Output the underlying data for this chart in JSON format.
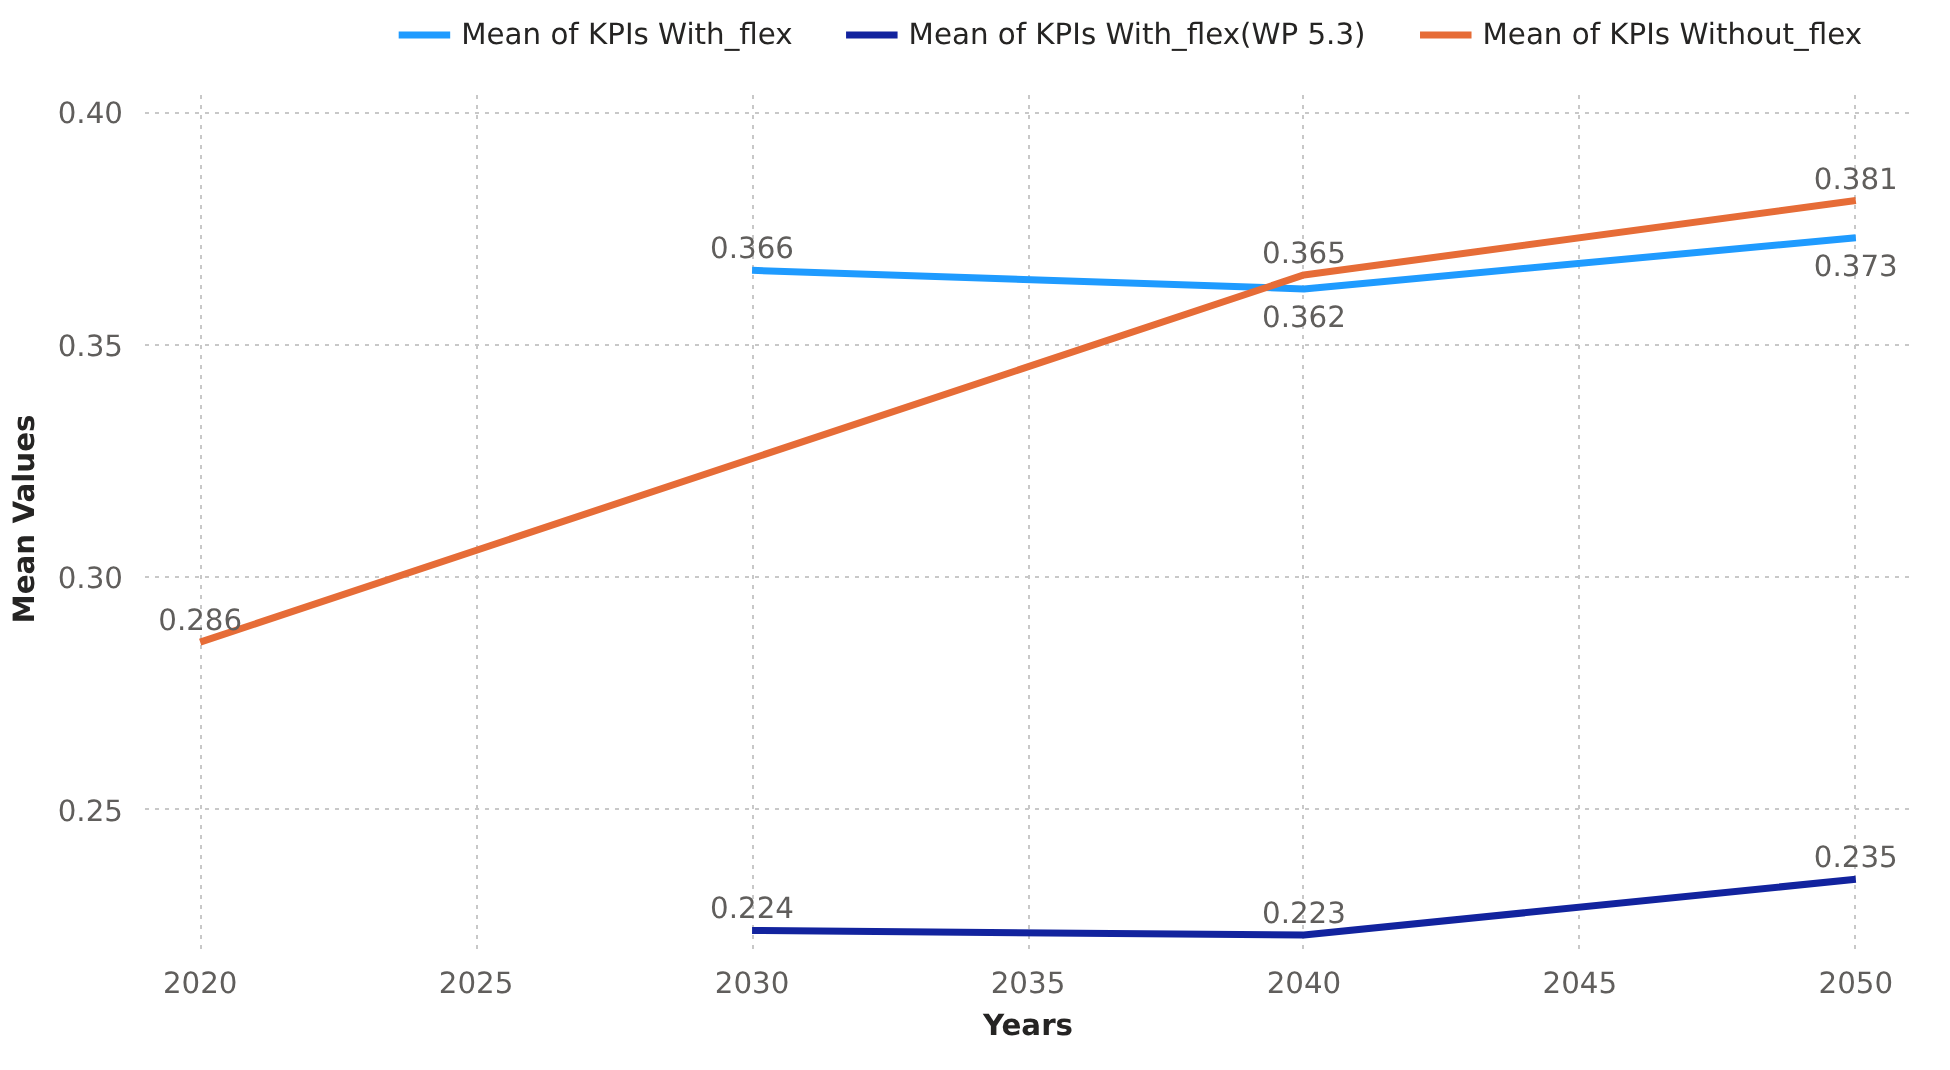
{
  "chart_data": {
    "type": "line",
    "xlabel": "Years",
    "ylabel": "Mean Values",
    "xlim": [
      2019,
      2051
    ],
    "xticks": [
      2020,
      2025,
      2030,
      2035,
      2040,
      2045,
      2050
    ],
    "ylim": [
      0.22,
      0.405
    ],
    "yticks": [
      0.25,
      {
        "value": 0.3,
        "label": "0.30"
      },
      0.35,
      {
        "value": 0.4,
        "label": "0.40"
      }
    ],
    "series": [
      {
        "name": "Mean of KPIs With_flex",
        "color": "#1f9bff",
        "x": [
          2030,
          2040,
          2050
        ],
        "values": [
          0.366,
          0.362,
          0.373
        ]
      },
      {
        "name": "Mean of KPIs With_flex(WP 5.3)",
        "color": "#12239e",
        "x": [
          2030,
          2040,
          2050
        ],
        "values": [
          0.224,
          0.223,
          0.235
        ]
      },
      {
        "name": "Mean of KPIs Without_flex",
        "color": "#e66c37",
        "x": [
          2020,
          2040,
          2050
        ],
        "values": [
          0.286,
          0.365,
          0.381
        ]
      }
    ],
    "data_labels": true,
    "grid": true,
    "legend": "top",
    "marker": "none",
    "line_style": "solid"
  }
}
